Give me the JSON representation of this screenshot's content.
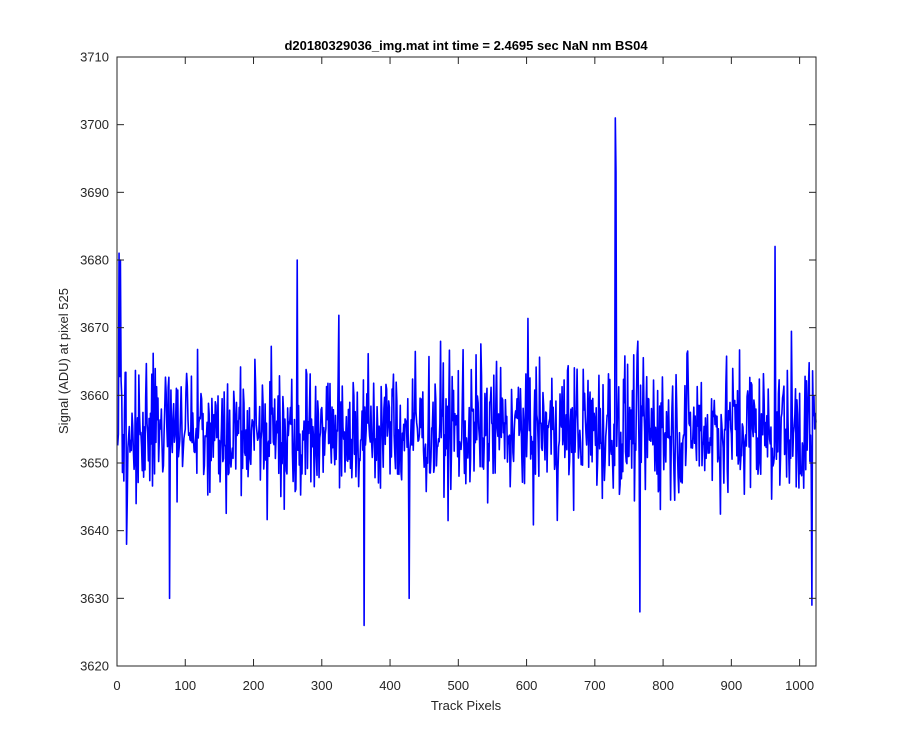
{
  "chart_data": {
    "type": "line",
    "title": "d20180329036_img.mat int time = 2.4695 sec  NaN nm BS04",
    "xlabel": "Track Pixels",
    "ylabel": "Signal (ADU) at pixel 525",
    "xlim": [
      0,
      1024
    ],
    "ylim": [
      3620,
      3710
    ],
    "xticks": [
      0,
      100,
      200,
      300,
      400,
      500,
      600,
      700,
      800,
      900,
      1000
    ],
    "yticks": [
      3620,
      3630,
      3640,
      3650,
      3660,
      3670,
      3680,
      3690,
      3700,
      3710
    ],
    "grid": false,
    "legend": "none",
    "series": [
      {
        "color": "#0000ff",
        "x_start": 1,
        "x_step": 1,
        "approx_mean": 3655,
        "noise_range": [
          3626,
          3701
        ],
        "notable_points": [
          {
            "x": 3,
            "y": 3681
          },
          {
            "x": 5,
            "y": 3680
          },
          {
            "x": 14,
            "y": 3638
          },
          {
            "x": 77,
            "y": 3630
          },
          {
            "x": 264,
            "y": 3680
          },
          {
            "x": 362,
            "y": 3626
          },
          {
            "x": 428,
            "y": 3630
          },
          {
            "x": 730,
            "y": 3701
          },
          {
            "x": 731,
            "y": 3693
          },
          {
            "x": 766,
            "y": 3628
          },
          {
            "x": 964,
            "y": 3682
          },
          {
            "x": 1018,
            "y": 3629
          }
        ]
      }
    ]
  }
}
